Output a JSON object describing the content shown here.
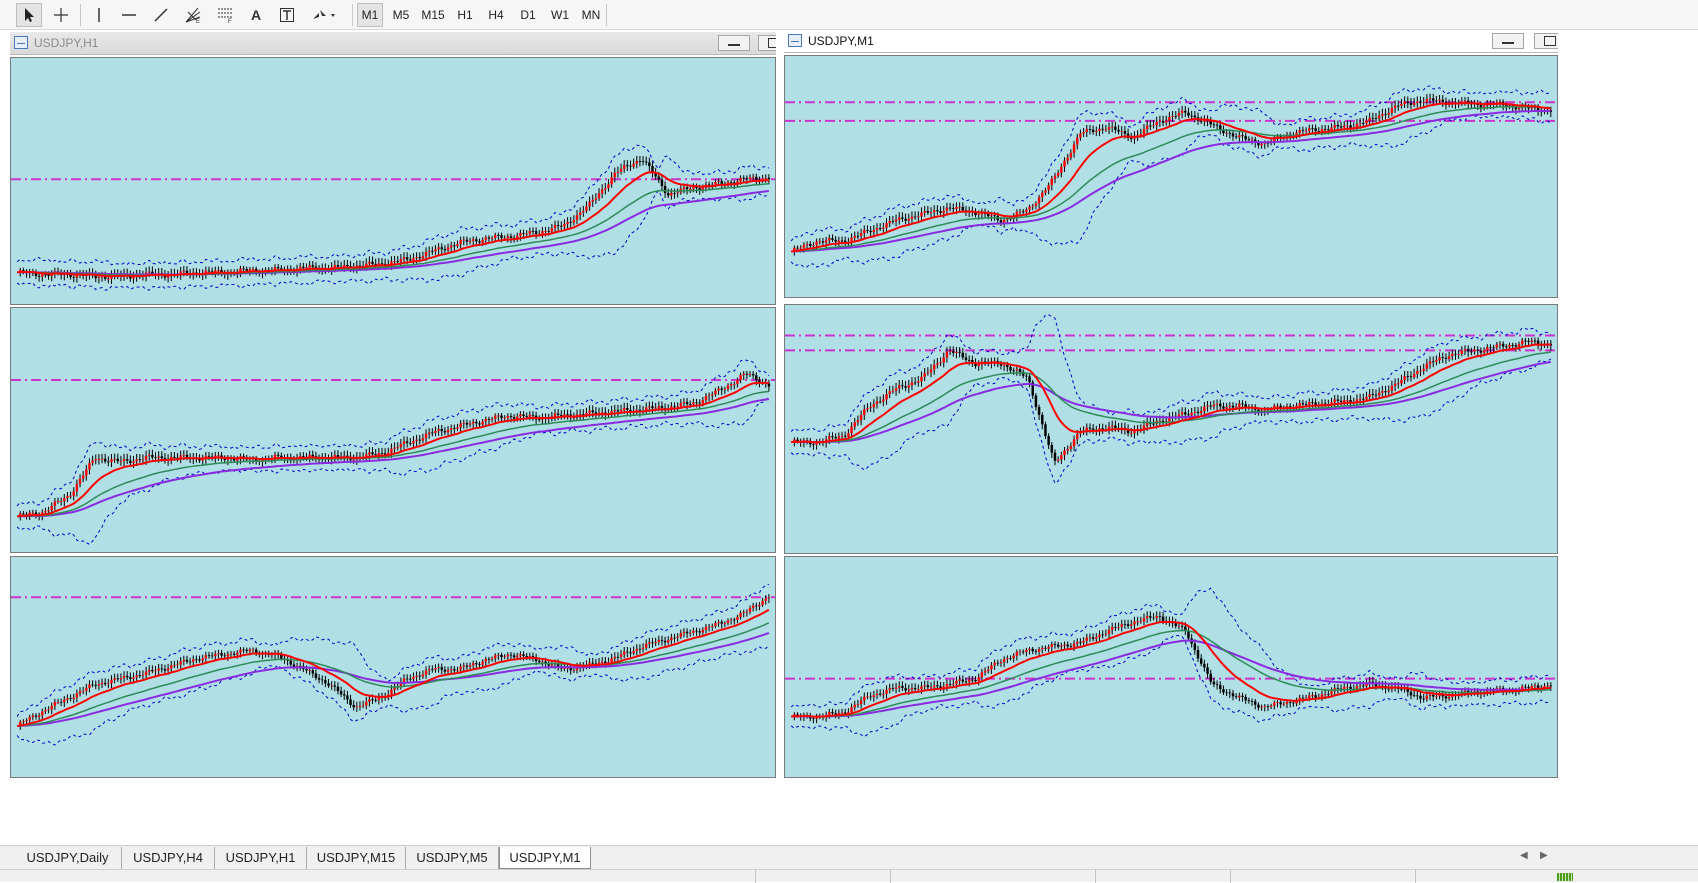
{
  "toolbar": {
    "tools": [
      "cursor",
      "crosshair",
      "vertical-line",
      "horizontal-line",
      "trendline",
      "fibonacci-fan",
      "fibonacci-retracement",
      "text",
      "text-label",
      "arrows"
    ],
    "text_tool_label": "A",
    "timeframes": [
      "M1",
      "M5",
      "M15",
      "H1",
      "H4",
      "D1",
      "W1",
      "MN"
    ],
    "selected_timeframe": "M1"
  },
  "windows": [
    {
      "title": "USDJPY,H1",
      "active": false
    },
    {
      "title": "USDJPY,M1",
      "active": true
    }
  ],
  "tabs": [
    "USDJPY,Daily",
    "USDJPY,H4",
    "USDJPY,H1",
    "USDJPY,M15",
    "USDJPY,M5",
    "USDJPY,M1"
  ],
  "active_tab": "USDJPY,M1",
  "colors": {
    "chart_background": "#b0e0e6",
    "candle": "#ff0000",
    "ma_fast": "#ff0000",
    "ma_mid": "#2e8b57",
    "ma_slow": "#8a2be2",
    "bollinger": "#0000cd",
    "level_line": "#cc33cc"
  },
  "chart_data": [
    {
      "type": "line",
      "x": [
        0,
        1,
        2,
        3,
        4,
        5,
        6,
        7,
        8,
        9,
        10,
        11,
        12,
        13,
        14,
        15,
        16,
        17,
        18,
        19,
        20,
        21,
        22,
        23,
        24,
        25,
        26,
        27,
        28,
        29
      ],
      "series": [
        {
          "values": [
            0.08,
            0.07,
            0.07,
            0.06,
            0.06,
            0.07,
            0.07,
            0.08,
            0.08,
            0.09,
            0.09,
            0.1,
            0.1,
            0.11,
            0.12,
            0.14,
            0.18,
            0.22,
            0.24,
            0.25,
            0.27,
            0.3,
            0.4,
            0.55,
            0.62,
            0.45,
            0.48,
            0.5,
            0.52,
            0.53
          ]
        }
      ],
      "levels": [
        0.52
      ]
    },
    {
      "type": "line",
      "x": [
        0,
        1,
        2,
        3,
        4,
        5,
        6,
        7,
        8,
        9,
        10,
        11,
        12,
        13,
        14,
        15,
        16,
        17,
        18,
        19,
        20,
        21,
        22,
        23,
        24,
        25,
        26,
        27,
        28,
        29
      ],
      "series": [
        {
          "values": [
            0.15,
            0.2,
            0.2,
            0.25,
            0.3,
            0.33,
            0.36,
            0.34,
            0.3,
            0.35,
            0.5,
            0.72,
            0.75,
            0.7,
            0.78,
            0.82,
            0.76,
            0.7,
            0.67,
            0.72,
            0.74,
            0.75,
            0.78,
            0.85,
            0.88,
            0.87,
            0.86,
            0.86,
            0.84,
            0.83
          ]
        }
      ],
      "levels": [
        0.87,
        0.78
      ]
    },
    {
      "type": "line",
      "x": [
        0,
        1,
        2,
        3,
        4,
        5,
        6,
        7,
        8,
        9,
        10,
        11,
        12,
        13,
        14,
        15,
        16,
        17,
        18,
        19,
        20,
        21,
        22,
        23,
        24,
        25,
        26,
        27,
        28,
        29
      ],
      "series": [
        {
          "values": [
            0.1,
            0.12,
            0.2,
            0.38,
            0.36,
            0.38,
            0.38,
            0.38,
            0.38,
            0.37,
            0.38,
            0.38,
            0.38,
            0.38,
            0.4,
            0.45,
            0.5,
            0.53,
            0.56,
            0.58,
            0.57,
            0.58,
            0.59,
            0.6,
            0.61,
            0.62,
            0.64,
            0.7,
            0.78,
            0.72
          ]
        }
      ],
      "levels": [
        0.75
      ]
    },
    {
      "type": "line",
      "x": [
        0,
        1,
        2,
        3,
        4,
        5,
        6,
        7,
        8,
        9,
        10,
        11,
        12,
        13,
        14,
        15,
        16,
        17,
        18,
        19,
        20,
        21,
        22,
        23,
        24,
        25,
        26,
        27,
        28,
        29
      ],
      "series": [
        {
          "values": [
            0.45,
            0.45,
            0.48,
            0.62,
            0.7,
            0.75,
            0.88,
            0.82,
            0.82,
            0.75,
            0.35,
            0.5,
            0.52,
            0.5,
            0.55,
            0.58,
            0.62,
            0.62,
            0.6,
            0.62,
            0.63,
            0.64,
            0.66,
            0.72,
            0.8,
            0.86,
            0.88,
            0.9,
            0.92,
            0.91
          ]
        }
      ],
      "levels": [
        0.95,
        0.88
      ]
    },
    {
      "type": "line",
      "x": [
        0,
        1,
        2,
        3,
        4,
        5,
        6,
        7,
        8,
        9,
        10,
        11,
        12,
        13,
        14,
        15,
        16,
        17,
        18,
        19,
        20,
        21,
        22,
        23,
        24,
        25,
        26,
        27,
        28,
        29
      ],
      "series": [
        {
          "values": [
            0.2,
            0.28,
            0.35,
            0.42,
            0.45,
            0.48,
            0.52,
            0.56,
            0.58,
            0.6,
            0.57,
            0.5,
            0.42,
            0.3,
            0.35,
            0.45,
            0.5,
            0.5,
            0.55,
            0.58,
            0.55,
            0.5,
            0.52,
            0.56,
            0.62,
            0.66,
            0.7,
            0.74,
            0.8,
            0.9
          ]
        }
      ],
      "levels": [
        0.88
      ]
    },
    {
      "type": "line",
      "x": [
        0,
        1,
        2,
        3,
        4,
        5,
        6,
        7,
        8,
        9,
        10,
        11,
        12,
        13,
        14,
        15,
        16,
        17,
        18,
        19,
        20,
        21,
        22,
        23,
        24,
        25,
        26,
        27,
        28,
        29
      ],
      "series": [
        {
          "values": [
            0.25,
            0.25,
            0.27,
            0.36,
            0.4,
            0.4,
            0.42,
            0.45,
            0.55,
            0.6,
            0.62,
            0.64,
            0.7,
            0.75,
            0.78,
            0.7,
            0.42,
            0.35,
            0.3,
            0.33,
            0.36,
            0.4,
            0.42,
            0.4,
            0.35,
            0.36,
            0.38,
            0.39,
            0.4,
            0.42
          ]
        }
      ],
      "levels": [
        0.45
      ]
    }
  ]
}
